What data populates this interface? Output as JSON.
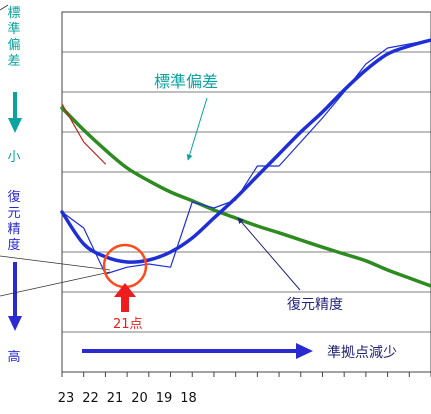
{
  "chart_data": {
    "type": "line",
    "title": "",
    "xlabel": "",
    "ylabel": "",
    "x_tick_labels": [
      "23",
      "22",
      "21",
      "20",
      "19",
      "18"
    ],
    "y_range": [
      0,
      9
    ],
    "grid": true,
    "series": [
      {
        "name": "標準偏差",
        "color": "#2e8b1f",
        "style": "smooth",
        "x": [
          0,
          1,
          2,
          3,
          4,
          5,
          6,
          7,
          8,
          9,
          10,
          11,
          12,
          13,
          14,
          15,
          16,
          17
        ],
        "y": [
          6.6,
          6.05,
          5.55,
          5.1,
          4.78,
          4.5,
          4.28,
          4.05,
          3.85,
          3.65,
          3.48,
          3.3,
          3.12,
          2.95,
          2.78,
          2.55,
          2.35,
          2.15
        ]
      },
      {
        "name": "",
        "color": "#c81e1e",
        "style": "jagged",
        "x": [
          0,
          1,
          2
        ],
        "y": [
          6.7,
          5.75,
          5.2
        ]
      },
      {
        "name": "復元精度",
        "color": "#1f2fd6",
        "style": "smooth",
        "x": [
          0,
          1,
          2,
          3,
          4,
          5,
          6,
          7,
          8,
          9,
          10,
          11,
          12,
          13,
          14,
          15,
          16,
          17
        ],
        "y": [
          4.0,
          3.2,
          2.88,
          2.75,
          2.8,
          3.0,
          3.35,
          3.85,
          4.35,
          4.9,
          5.45,
          6.0,
          6.5,
          7.05,
          7.55,
          7.95,
          8.15,
          8.3
        ]
      },
      {
        "name": "",
        "color": "#1f2fd6",
        "style": "jagged",
        "x": [
          0,
          1,
          2,
          3,
          4,
          5,
          6,
          7,
          8,
          9,
          10,
          11,
          12,
          13,
          14,
          15,
          16,
          17
        ],
        "y": [
          4.0,
          3.6,
          2.45,
          2.62,
          2.7,
          2.62,
          4.25,
          4.1,
          4.3,
          5.15,
          5.15,
          5.75,
          6.35,
          7.0,
          7.7,
          8.1,
          8.2,
          8.3
        ]
      }
    ],
    "annotations": {
      "std_dev_label": "標準偏差",
      "accuracy_label": "復元精度",
      "point_label": "21点",
      "arrow_label": "準拠点減少",
      "left_top_text": "標準偏差",
      "left_small": "小",
      "left_mid_text": "復元精度",
      "left_high": "高"
    }
  }
}
